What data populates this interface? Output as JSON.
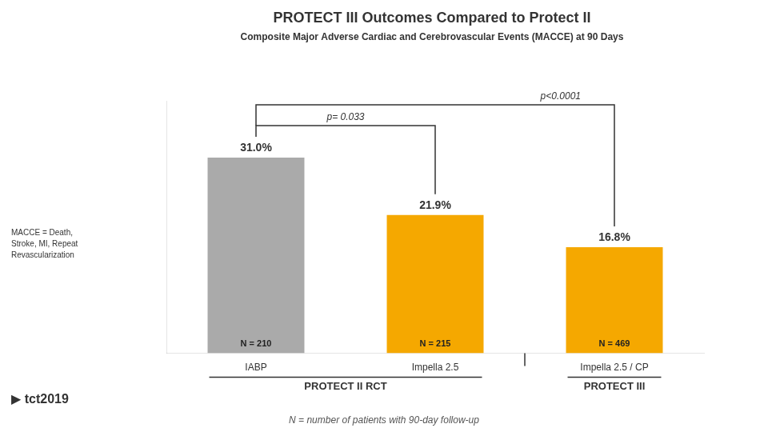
{
  "chart_data": {
    "type": "bar",
    "title": "PROTECT III Outcomes Compared to Protect II",
    "subtitle": "Composite Major Adverse Cardiac and Cerebrovascular Events (MACCE) at 90 Days",
    "categories": [
      "IABP",
      "Impella 2.5",
      "Impella 2.5 / CP"
    ],
    "values": [
      31.0,
      21.9,
      16.8
    ],
    "value_labels": [
      "31.0%",
      "21.9%",
      "16.8%"
    ],
    "data_labels": true,
    "colors": [
      "#aaaaaa",
      "#f5a800",
      "#f5a800"
    ],
    "n_labels": [
      "N = 210",
      "N = 215",
      "N = 469"
    ],
    "groups": [
      {
        "label": "PROTECT II RCT",
        "categories": [
          "IABP",
          "Impella 2.5"
        ]
      },
      {
        "label": "PROTECT III",
        "categories": [
          "Impella 2.5 / CP"
        ]
      }
    ],
    "comparisons": [
      {
        "from": "IABP",
        "to": "Impella 2.5",
        "label": "p= 0.033"
      },
      {
        "from": "IABP",
        "to": "Impella 2.5 / CP",
        "label": "p<0.0001"
      }
    ],
    "footnote": "MACCE = Death,\nStroke, MI, Repeat\nRevascularization",
    "bottom_note": "N = number of patients with 90-day follow-up",
    "logo": "▶ tct2019",
    "ylim": [
      0,
      40
    ],
    "tick_labels": "x",
    "grid": false
  }
}
